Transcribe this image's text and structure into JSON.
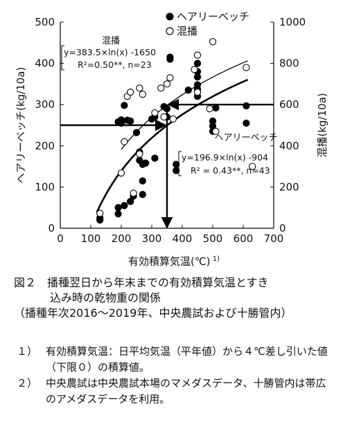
{
  "chart_data": {
    "type": "scatter",
    "xlabel": "有効積算気温(℃)",
    "xlabel_sup": "1)",
    "ylabel_left": "ヘアリーベッチ(kg/10a)",
    "ylabel_right": "混播(kg/10a)",
    "xlim": [
      0,
      700
    ],
    "ylim_left": [
      0,
      500
    ],
    "ylim_right": [
      0,
      1000
    ],
    "xticks": [
      0,
      100,
      200,
      300,
      400,
      500,
      600,
      700
    ],
    "yticks_left": [
      0,
      100,
      200,
      300,
      400,
      500
    ],
    "yticks_right": [
      0,
      200,
      400,
      600,
      800,
      1000
    ],
    "grid": false,
    "legend_position": "top-right",
    "series": [
      {
        "name": "ヘアリーベッチ",
        "axis": "left",
        "marker": "filled-circle",
        "points": [
          [
            130,
            20
          ],
          [
            130,
            25
          ],
          [
            190,
            35
          ],
          [
            190,
            50
          ],
          [
            210,
            55
          ],
          [
            230,
            65
          ],
          [
            240,
            78
          ],
          [
            270,
            82
          ],
          [
            270,
            115
          ],
          [
            270,
            155
          ],
          [
            260,
            165
          ],
          [
            260,
            185
          ],
          [
            280,
            158
          ],
          [
            310,
            170
          ],
          [
            190,
            258
          ],
          [
            200,
            255
          ],
          [
            200,
            263
          ],
          [
            220,
            262
          ],
          [
            230,
            260
          ],
          [
            210,
            298
          ],
          [
            250,
            232
          ],
          [
            300,
            265
          ],
          [
            310,
            270
          ],
          [
            350,
            270
          ],
          [
            350,
            290
          ],
          [
            340,
            295
          ],
          [
            360,
            410
          ],
          [
            360,
            415
          ],
          [
            380,
            155
          ],
          [
            380,
            140
          ],
          [
            420,
            335
          ],
          [
            450,
            320
          ],
          [
            450,
            337
          ],
          [
            450,
            348
          ],
          [
            450,
            367
          ],
          [
            450,
            380
          ],
          [
            450,
            400
          ],
          [
            500,
            235
          ],
          [
            500,
            248
          ],
          [
            500,
            260
          ],
          [
            510,
            292
          ],
          [
            610,
            255
          ],
          [
            610,
            297
          ]
        ]
      },
      {
        "name": "混播",
        "axis": "right",
        "marker": "open-circle",
        "points": [
          [
            130,
            72
          ],
          [
            200,
            268
          ],
          [
            210,
            420
          ],
          [
            220,
            640
          ],
          [
            230,
            660
          ],
          [
            260,
            680
          ],
          [
            260,
            360
          ],
          [
            270,
            650
          ],
          [
            240,
            170
          ],
          [
            310,
            560
          ],
          [
            330,
            680
          ],
          [
            350,
            700
          ],
          [
            360,
            730
          ],
          [
            370,
            530
          ],
          [
            340,
            540
          ],
          [
            440,
            770
          ],
          [
            450,
            840
          ],
          [
            450,
            660
          ],
          [
            490,
            580
          ],
          [
            510,
            470
          ],
          [
            500,
            905
          ],
          [
            610,
            780
          ],
          [
            630,
            300
          ]
        ]
      }
    ],
    "fits": [
      {
        "series": "混播",
        "axis": "right",
        "a": 383.5,
        "b": -1650,
        "x_range": [
          200,
          615
        ],
        "label_name": "混播",
        "label_eq": "y=383.5×ln(x) -1650",
        "label_r2": "R²=0.50**, n=23"
      },
      {
        "series": "ヘアリーベッチ",
        "axis": "left",
        "a": 196.9,
        "b": -904,
        "x_range": [
          120,
          615
        ],
        "label_name": "ヘアリーベッチ",
        "label_eq": "y=196.9×ln(x) -904",
        "label_r2": "R² = 0.43**, n=43"
      }
    ],
    "reading_guide": {
      "x": 350,
      "y_left": 250,
      "y_right": 600
    }
  },
  "caption": {
    "fig_label": "図２",
    "title_line1": "播種翌日から年末までの有効積算気温とすき",
    "title_line2": "込み時の乾物重の関係",
    "title_line3": "（播種年次2016～2019年、中央農試および十勝管内）"
  },
  "notes": [
    {
      "num": "１）",
      "text": "有効積算気温：日平均気温（平年値）から４℃差し引いた値（下限０）の積算値。"
    },
    {
      "num": "２）",
      "text": "中央農試は中央農試本場のマメダスデータ、十勝管内は帯広のアメダスデータを利用。"
    }
  ]
}
